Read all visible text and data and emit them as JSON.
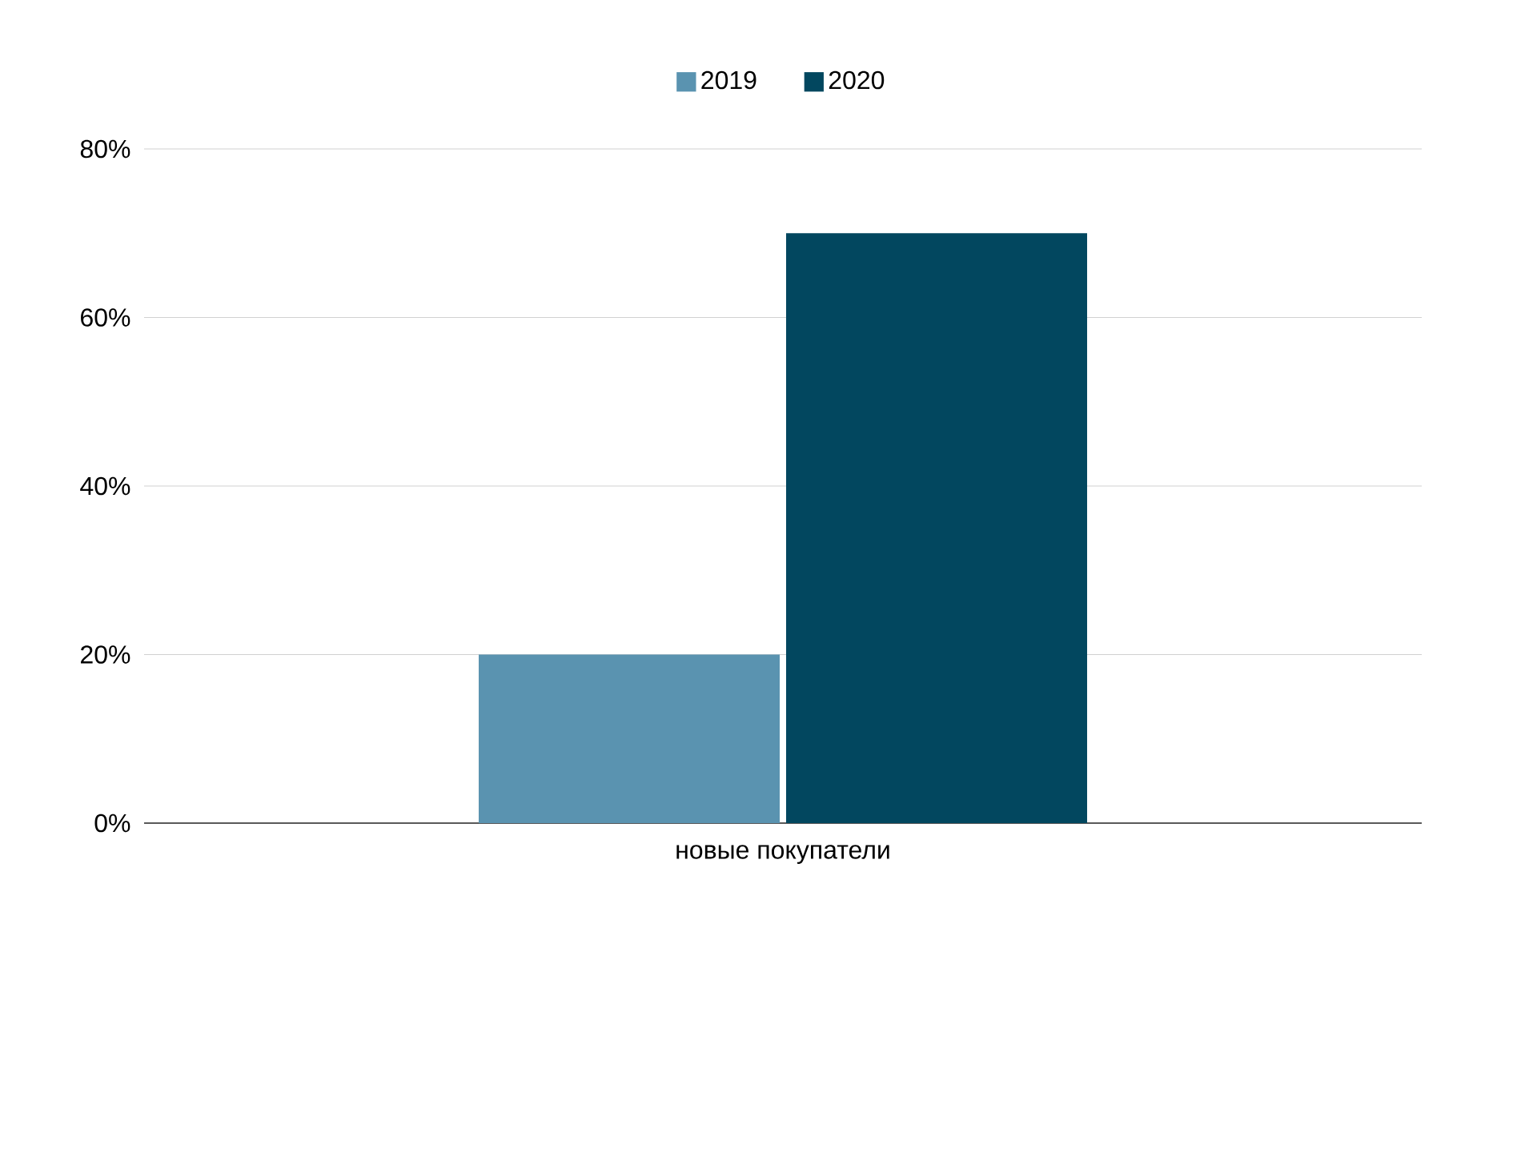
{
  "chart_data": {
    "type": "bar",
    "categories": [
      "новые покупатели"
    ],
    "series": [
      {
        "name": "2019",
        "color": "#5a93b0",
        "values": [
          20
        ]
      },
      {
        "name": "2020",
        "color": "#02475f",
        "values": [
          70
        ]
      }
    ],
    "ylim": [
      0,
      80
    ],
    "yticks": [
      {
        "value": 0,
        "label": "0%"
      },
      {
        "value": 20,
        "label": "20%"
      },
      {
        "value": 40,
        "label": "40%"
      },
      {
        "value": 60,
        "label": "60%"
      },
      {
        "value": 80,
        "label": "80%"
      }
    ],
    "grid": "y",
    "legend": "top"
  }
}
